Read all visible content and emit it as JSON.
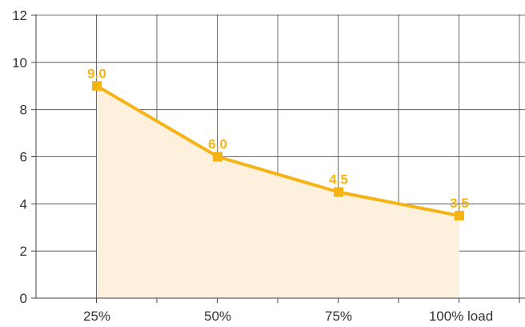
{
  "chart_data": {
    "type": "area",
    "categories": [
      "25%",
      "50%",
      "75%",
      "100% load"
    ],
    "series": [
      {
        "values": [
          9.0,
          6.0,
          4.5,
          3.5
        ]
      }
    ],
    "data_labels": [
      "9.0",
      "6.0",
      "4.5",
      "3.5"
    ],
    "title": "",
    "xlabel": "",
    "ylabel": "",
    "ylim": [
      0,
      12
    ],
    "yticks": [
      "0",
      "2",
      "4",
      "6",
      "8",
      "10",
      "12"
    ],
    "grid": true,
    "legend": "none",
    "colors": {
      "line": "#f5b315",
      "fill": "#fdf1de",
      "grid": "#444444",
      "text": "#333333"
    }
  }
}
